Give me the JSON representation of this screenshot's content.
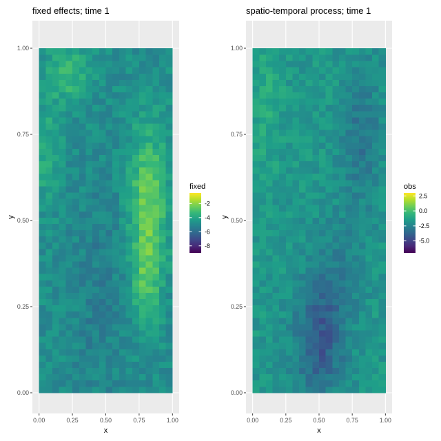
{
  "chart_data": [
    {
      "type": "heatmap",
      "title": "fixed effects; time 1",
      "xlabel": "x",
      "ylabel": "y",
      "xlim": [
        -0.05,
        1.05
      ],
      "ylim": [
        -0.06,
        1.08
      ],
      "xticks": [
        0.0,
        0.25,
        0.5,
        0.75,
        1.0
      ],
      "xtick_labels": [
        "0.00",
        "0.25",
        "0.50",
        "0.75",
        "1.00"
      ],
      "yticks": [
        0.0,
        0.25,
        0.5,
        0.75,
        1.0
      ],
      "ytick_labels": [
        "0.00",
        "0.25",
        "0.50",
        "0.75",
        "1.00"
      ],
      "grid": true,
      "fill_range": [
        -9,
        -0.5
      ],
      "cols": 20,
      "rows": 55,
      "legend": {
        "title": "fixed",
        "placement": "right",
        "range": [
          -9,
          -0.5
        ],
        "breaks": [
          -2,
          -4,
          -6,
          -8
        ],
        "labels": [
          "-2",
          "-4",
          "-6",
          "-8"
        ]
      }
    },
    {
      "type": "heatmap",
      "title": "spatio-temporal process; time 1",
      "xlabel": "x",
      "ylabel": "y",
      "xlim": [
        -0.05,
        1.05
      ],
      "ylim": [
        -0.06,
        1.08
      ],
      "xticks": [
        0.0,
        0.25,
        0.5,
        0.75,
        1.0
      ],
      "xtick_labels": [
        "0.00",
        "0.25",
        "0.50",
        "0.75",
        "1.00"
      ],
      "yticks": [
        0.0,
        0.25,
        0.5,
        0.75,
        1.0
      ],
      "ytick_labels": [
        "0.00",
        "0.25",
        "0.50",
        "0.75",
        "1.00"
      ],
      "grid": true,
      "fill_range": [
        -7,
        3
      ],
      "cols": 20,
      "rows": 55,
      "legend": {
        "title": "obs",
        "placement": "right",
        "range": [
          -7,
          3
        ],
        "breaks": [
          2.5,
          0.0,
          -2.5,
          -5.0
        ],
        "labels": [
          "2.5",
          "0.0",
          "-2.5",
          "-5.0"
        ]
      }
    }
  ],
  "colors": {
    "panel_bg": "#ebebeb",
    "grid_line": "#ffffff",
    "text": "#000000",
    "tick_text": "#4d4d4d",
    "viridis": [
      "#440154",
      "#482878",
      "#3e4989",
      "#31688e",
      "#26828e",
      "#1f9e89",
      "#35b779",
      "#6ece58",
      "#b5de2b",
      "#fde725"
    ]
  }
}
